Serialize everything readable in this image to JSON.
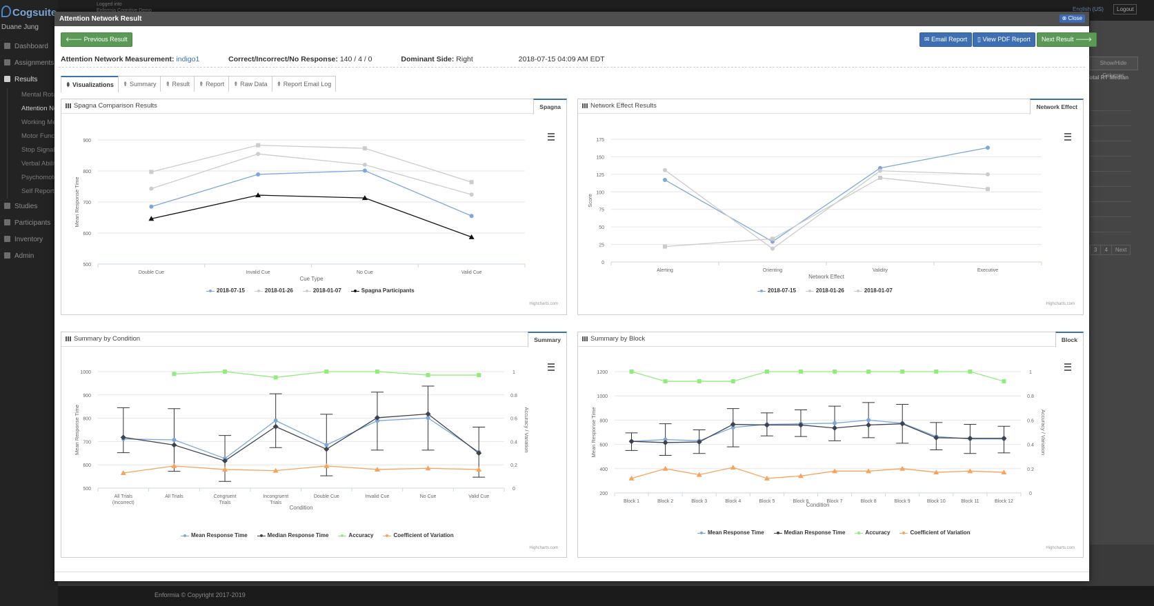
{
  "app": {
    "brand": "Cogsuite",
    "user": "Duane Jung",
    "top_text_1": "Logged into",
    "top_text_2": "Enformia Cognitive Demo",
    "language": "English (US)",
    "logout": "Logout",
    "footer": "Enformia © Copyright 2017-2019",
    "hide_columns": "Show/Hide Columns",
    "rt_median_header": "Total RT Median",
    "pager": [
      "3",
      "4",
      "Next"
    ]
  },
  "sidebar": {
    "items": [
      {
        "label": "Dashboard"
      },
      {
        "label": "Assignments"
      },
      {
        "label": "Results"
      }
    ],
    "sub_items": [
      {
        "label": "Mental Rotation"
      },
      {
        "label": "Attention Network"
      },
      {
        "label": "Working Memory"
      },
      {
        "label": "Motor Function"
      },
      {
        "label": "Stop Signal"
      },
      {
        "label": "Verbal Ability"
      },
      {
        "label": "Psychomotor"
      },
      {
        "label": "Self Report"
      }
    ],
    "items_after": [
      {
        "label": "Studies"
      },
      {
        "label": "Participants"
      },
      {
        "label": "Inventory"
      },
      {
        "label": "Admin"
      }
    ]
  },
  "modal": {
    "title": "Attention Network Result",
    "close": "Close",
    "prev": "Previous Result",
    "email": "Email Report",
    "pdf": "View PDF Report",
    "next": "Next Result",
    "info": {
      "measurement_label": "Attention Network Measurement:",
      "measurement_value": "indigo1",
      "cir_label": "Correct/Incorrect/No Response:",
      "cir_value": "140 / 4 / 0",
      "side_label": "Dominant Side:",
      "side_value": "Right",
      "datetime": "2018-07-15 04:09 AM EDT"
    },
    "tabs": [
      "Visualizations",
      "Summary",
      "Result",
      "Report",
      "Raw Data",
      "Report Email Log"
    ]
  },
  "panels": {
    "p1": {
      "title": "Spagna Comparison Results",
      "tab": "Spagna"
    },
    "p2": {
      "title": "Network Effect Results",
      "tab": "Network Effect"
    },
    "p3": {
      "title": "Summary by Condition",
      "tab": "Summary"
    },
    "p4": {
      "title": "Summary by Block",
      "tab": "Block"
    },
    "credits": "Highcharts.com"
  },
  "colors": {
    "blue": "#7ca6e0",
    "grey": "#cccccc",
    "dark": "#3d4450",
    "black": "#111111",
    "green": "#90ed7d",
    "orange": "#f7a35c"
  },
  "chart_data": [
    {
      "type": "line",
      "categories": [
        "Double Cue",
        "Invalid Cue",
        "No Cue",
        "Valid Cue"
      ],
      "xlabel": "Cue Type",
      "ylabel": "Mean Response Time",
      "ylim": [
        500,
        900
      ],
      "yticks": [
        500,
        600,
        700,
        800,
        900
      ],
      "series": [
        {
          "name": "2018-07-15",
          "color": "#7ca6e0",
          "marker": "circle",
          "values": [
            685,
            789,
            801,
            655
          ]
        },
        {
          "name": "2018-01-26",
          "color": "#cccccc",
          "marker": "circle",
          "values": [
            743,
            855,
            820,
            724
          ]
        },
        {
          "name": "2018-01-07",
          "color": "#cccccc",
          "marker": "square",
          "values": [
            797,
            883,
            873,
            764
          ]
        },
        {
          "name": "Spagna Participants",
          "color": "#111111",
          "marker": "triangle",
          "values": [
            646,
            722,
            713,
            587
          ]
        }
      ]
    },
    {
      "type": "line",
      "categories": [
        "Alerting",
        "Orienting",
        "Validity",
        "Executive"
      ],
      "xlabel": "Network Effect",
      "ylabel": "Score",
      "ylim": [
        0,
        175
      ],
      "yticks": [
        0,
        25,
        50,
        75,
        100,
        125,
        150,
        175
      ],
      "series": [
        {
          "name": "2018-07-15",
          "color": "#7ca6e0",
          "marker": "circle",
          "values": [
            117,
            29,
            134,
            163
          ]
        },
        {
          "name": "2018-01-26",
          "color": "#cccccc",
          "marker": "circle",
          "values": [
            131,
            19,
            130,
            125
          ]
        },
        {
          "name": "2018-01-07",
          "color": "#cccccc",
          "marker": "square",
          "values": [
            22,
            33,
            120,
            104
          ]
        }
      ]
    },
    {
      "type": "line",
      "categories": [
        "All Trials (Incorrect)",
        "All Trials",
        "Congruent Trials",
        "Incongruent Trials",
        "Double Cue",
        "Invalid Cue",
        "No Cue",
        "Valid Cue"
      ],
      "xlabel": "Condition",
      "ylabel": "Mean Response Time",
      "ylabel_right": "Accuracy / Variation",
      "ylim": [
        500,
        1000
      ],
      "yticks": [
        500,
        600,
        700,
        800,
        900,
        1000
      ],
      "ylim_right": [
        0,
        1
      ],
      "yticks_right": [
        0,
        0.2,
        0.4,
        0.6,
        0.8,
        1
      ],
      "series": [
        {
          "name": "Mean Response Time",
          "color": "#7ca6e0",
          "marker": "circle",
          "axis": "left",
          "values": [
            711,
            707,
            627,
            790,
            685,
            789,
            801,
            655
          ]
        },
        {
          "name": "Median Response Time",
          "color": "#3d4450",
          "marker": "diamond",
          "axis": "left",
          "values": [
            718,
            685,
            617,
            764,
            667,
            802,
            818,
            650
          ]
        },
        {
          "name": "Accuracy",
          "color": "#90ed7d",
          "marker": "square",
          "axis": "right",
          "values": [
            null,
            0.98,
            1.0,
            0.95,
            1.0,
            1.0,
            0.97,
            0.97
          ]
        },
        {
          "name": "Coefficient of Variation",
          "color": "#f7a35c",
          "marker": "triangle",
          "axis": "right",
          "values": [
            0.13,
            0.19,
            0.16,
            0.15,
            0.19,
            0.16,
            0.17,
            0.16
          ]
        }
      ],
      "error_bars": [
        [
          652,
          845
        ],
        [
          572,
          841
        ],
        [
          529,
          726
        ],
        [
          674,
          905
        ],
        [
          553,
          817
        ],
        [
          663,
          912
        ],
        [
          663,
          938
        ],
        [
          547,
          762
        ]
      ]
    },
    {
      "type": "line",
      "categories": [
        "Block 1",
        "Block 2",
        "Block 3",
        "Block 4",
        "Block 5",
        "Block 6",
        "Block 7",
        "Block 8",
        "Block 9",
        "Block 10",
        "Block 11",
        "Block 12"
      ],
      "xlabel": "Condition",
      "ylabel": "Mean Response Time",
      "ylabel_right": "Accuracy / Variation",
      "ylim": [
        200,
        1200
      ],
      "yticks": [
        200,
        400,
        600,
        800,
        1000,
        1200
      ],
      "ylim_right": [
        0,
        1
      ],
      "yticks_right": [
        0,
        0.2,
        0.4,
        0.6,
        0.8,
        1
      ],
      "series": [
        {
          "name": "Mean Response Time",
          "color": "#7ca6e0",
          "marker": "circle",
          "axis": "left",
          "values": [
            625,
            640,
            630,
            740,
            765,
            770,
            775,
            800,
            775,
            665,
            645,
            645
          ]
        },
        {
          "name": "Median Response Time",
          "color": "#3d4450",
          "marker": "diamond",
          "axis": "left",
          "values": [
            625,
            615,
            620,
            765,
            760,
            760,
            735,
            760,
            770,
            655,
            650,
            650
          ]
        },
        {
          "name": "Accuracy",
          "color": "#90ed7d",
          "marker": "square",
          "axis": "right",
          "values": [
            1.0,
            0.92,
            0.92,
            0.92,
            1.0,
            1.0,
            1.0,
            1.0,
            1.0,
            1.0,
            1.0,
            0.92
          ]
        },
        {
          "name": "Coefficient of Variation",
          "color": "#f7a35c",
          "marker": "triangle",
          "axis": "right",
          "values": [
            0.12,
            0.2,
            0.15,
            0.21,
            0.12,
            0.14,
            0.18,
            0.18,
            0.2,
            0.17,
            0.18,
            0.17
          ]
        }
      ],
      "error_bars": [
        [
          550,
          695
        ],
        [
          510,
          770
        ],
        [
          525,
          720
        ],
        [
          580,
          895
        ],
        [
          670,
          860
        ],
        [
          665,
          885
        ],
        [
          630,
          915
        ],
        [
          655,
          945
        ],
        [
          610,
          930
        ],
        [
          555,
          780
        ],
        [
          525,
          765
        ],
        [
          530,
          750
        ]
      ]
    }
  ]
}
